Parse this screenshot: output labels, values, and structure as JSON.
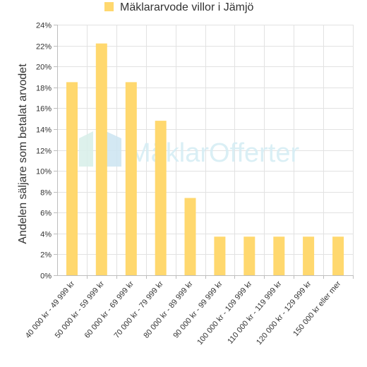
{
  "chart_data": {
    "type": "bar",
    "title": "",
    "ylabel": "Andelen säljare som betalat arvodet",
    "xlabel": "",
    "ylim": [
      0,
      24
    ],
    "ytick_step": 2,
    "ytick_suffix": "%",
    "grid": true,
    "legend_position": "top",
    "series": [
      {
        "name": "Mäklararvode villor i Jämjö",
        "color": "#ffd86e",
        "values": [
          18.5,
          22.2,
          18.5,
          14.8,
          7.4,
          3.7,
          3.7,
          3.7,
          3.7,
          3.7
        ]
      }
    ],
    "categories": [
      "40 000 kr - 49 999 kr",
      "50 000 kr - 59 999 kr",
      "60 000 kr - 69 999 kr",
      "70 000 kr - 79 999 kr",
      "80 000 kr - 89 999 kr",
      "90 000 kr - 99 999 kr",
      "100 000 kr - 109 999 kr",
      "110 000 kr - 119 999 kr",
      "120 000 kr - 129 999 kr",
      "150 000 kr eller mer"
    ]
  },
  "watermark": {
    "text": "MäklarOfferter",
    "icon": "house-logo-icon"
  }
}
